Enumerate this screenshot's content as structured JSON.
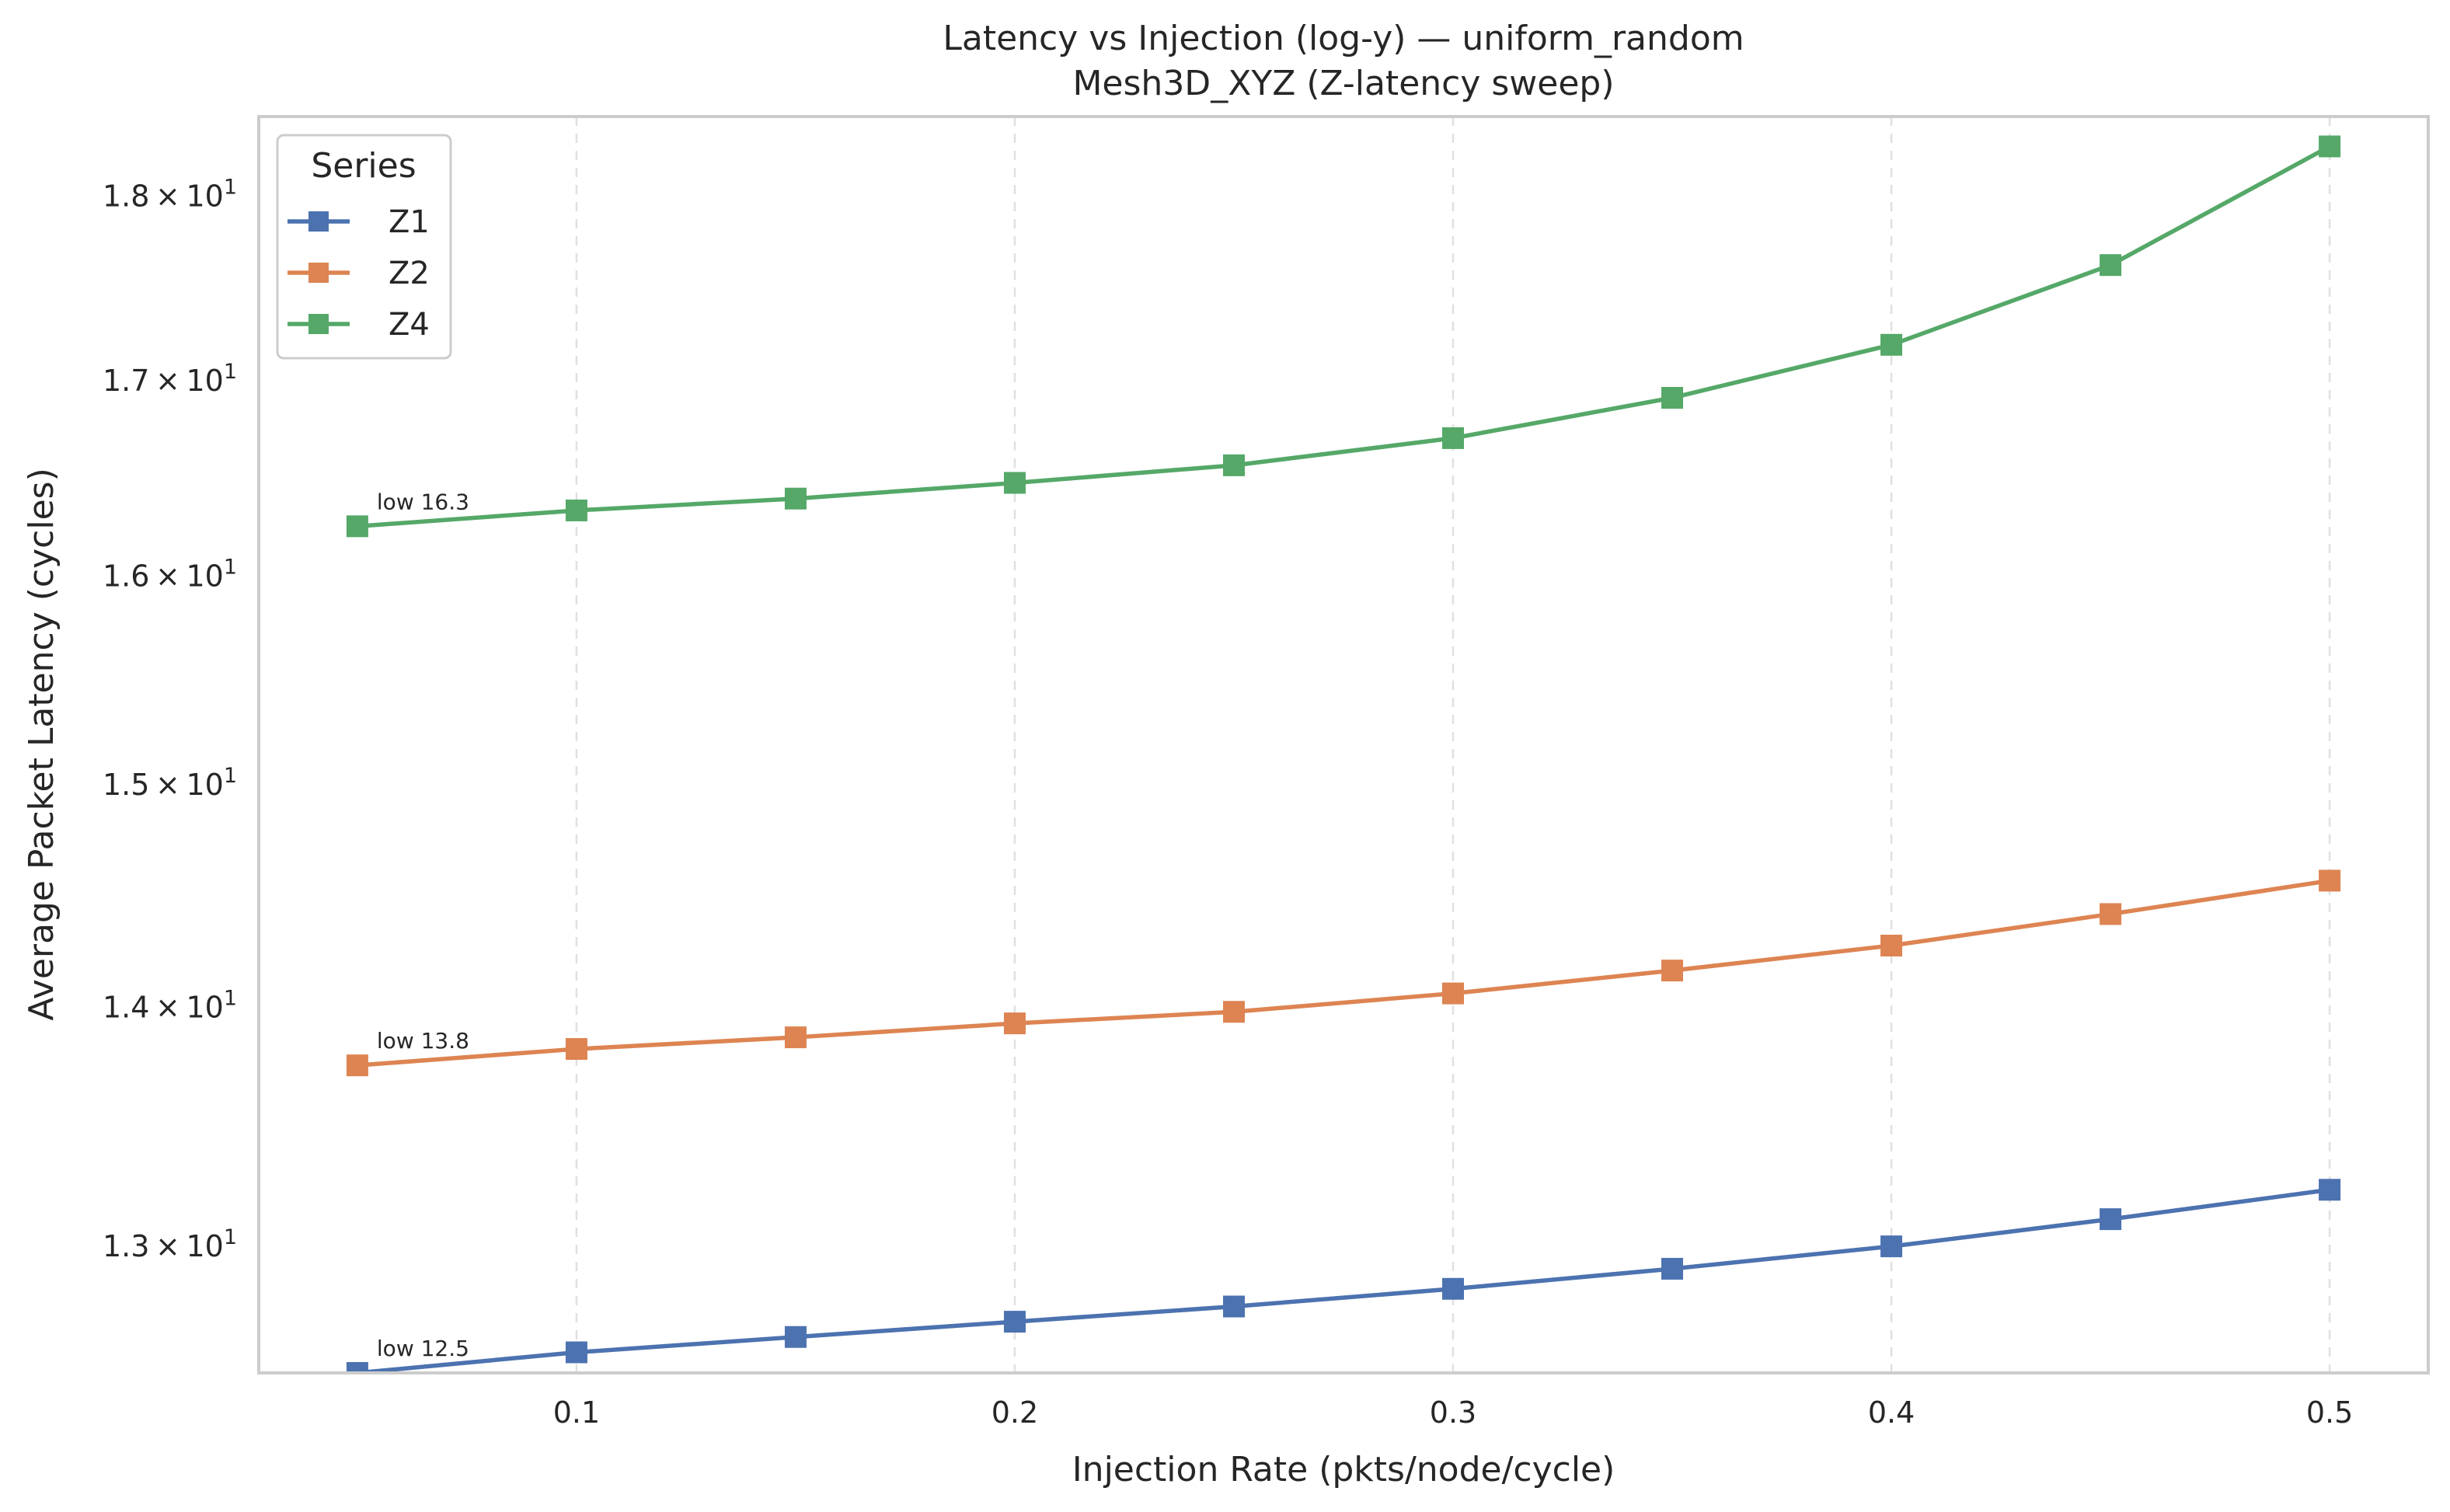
{
  "chart_data": {
    "type": "line",
    "title": "Latency vs Injection (log-y) — uniform_random",
    "subtitle": "Mesh3D_XYZ (Z-latency sweep)",
    "xlabel": "Injection Rate (pkts/node/cycle)",
    "ylabel": "Average Packet Latency (cycles)",
    "yscale": "log",
    "xlim": [
      0.0275,
      0.5225
    ],
    "ylim": [
      12.5,
      18.45
    ],
    "grid": "x-only, dashed",
    "x_ticks": [
      "0.1",
      "0.2",
      "0.3",
      "0.4",
      "0.5"
    ],
    "x_tick_values": [
      0.1,
      0.2,
      0.3,
      0.4,
      0.5
    ],
    "y_ticks": [
      {
        "value": 13,
        "mantissa": "1.3",
        "base": "10",
        "exp": "1"
      },
      {
        "value": 14,
        "mantissa": "1.4",
        "base": "10",
        "exp": "1"
      },
      {
        "value": 15,
        "mantissa": "1.5",
        "base": "10",
        "exp": "1"
      },
      {
        "value": 16,
        "mantissa": "1.6",
        "base": "10",
        "exp": "1"
      },
      {
        "value": 17,
        "mantissa": "1.7",
        "base": "10",
        "exp": "1"
      },
      {
        "value": 18,
        "mantissa": "1.8",
        "base": "10",
        "exp": "1"
      }
    ],
    "x": [
      0.05,
      0.1,
      0.15,
      0.2,
      0.25,
      0.3,
      0.35,
      0.4,
      0.45,
      0.5
    ],
    "legend": {
      "title": "Series",
      "position": "top-left"
    },
    "series": [
      {
        "name": "Z1",
        "color": "#4c72b0",
        "marker": "square",
        "values": [
          12.5,
          12.58,
          12.64,
          12.7,
          12.76,
          12.83,
          12.91,
          13.0,
          13.11,
          13.23
        ],
        "annotation": "low 12.5"
      },
      {
        "name": "Z2",
        "color": "#dd8452",
        "marker": "square",
        "values": [
          13.75,
          13.82,
          13.87,
          13.93,
          13.98,
          14.06,
          14.16,
          14.27,
          14.41,
          14.56
        ],
        "annotation": "low 13.8"
      },
      {
        "name": "Z4",
        "color": "#55a868",
        "marker": "square",
        "values": [
          16.25,
          16.33,
          16.39,
          16.47,
          16.56,
          16.7,
          16.91,
          17.19,
          17.62,
          18.28
        ],
        "annotation": "low 16.3"
      }
    ]
  }
}
